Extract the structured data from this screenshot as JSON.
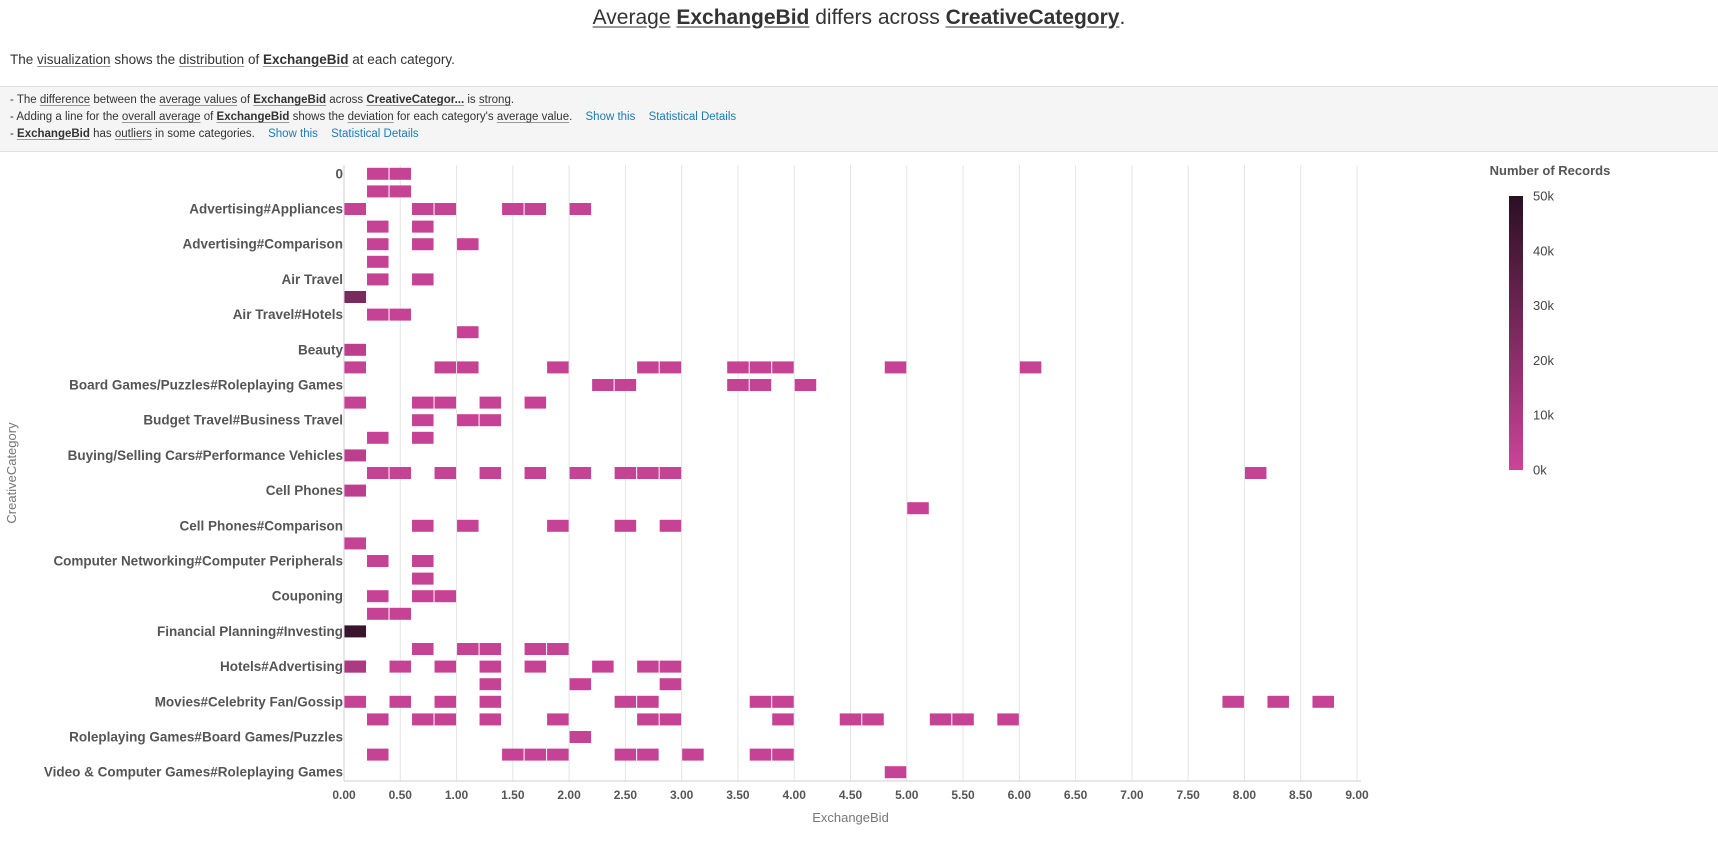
{
  "header": {
    "title_parts": [
      "Average",
      "ExchangeBid",
      "differs across",
      "CreativeCategory",
      "."
    ],
    "subtitle_parts": [
      "The",
      "visualization",
      "shows the",
      "distribution",
      "of",
      "ExchangeBid",
      "at each category."
    ]
  },
  "insights": [
    {
      "parts": [
        "- The",
        "difference",
        "between the",
        "average values",
        "of",
        "ExchangeBid",
        "across",
        "CreativeCategor...",
        "is",
        "strong",
        "."
      ]
    },
    {
      "parts": [
        "- Adding a line for the",
        "overall average",
        "of",
        "ExchangeBid",
        "shows the",
        "deviation",
        "for each category's",
        "average value",
        "."
      ],
      "show_label": "Show this",
      "details_label": "Statistical Details"
    },
    {
      "parts": [
        "-",
        "ExchangeBid",
        "has",
        "outliers",
        "in some categories."
      ],
      "show_label": "Show this",
      "details_label": "Statistical Details"
    }
  ],
  "chart_data": {
    "type": "heatmap",
    "xlabel": "ExchangeBid",
    "ylabel": "CreativeCategory",
    "xlim": [
      0,
      9
    ],
    "bin_width": 0.2,
    "x_ticks": [
      "0.00",
      "0.50",
      "1.00",
      "1.50",
      "2.00",
      "2.50",
      "3.00",
      "3.50",
      "4.00",
      "4.50",
      "5.00",
      "5.50",
      "6.00",
      "6.50",
      "7.00",
      "7.50",
      "8.00",
      "8.50",
      "9.00"
    ],
    "y_labels": [
      "0",
      "",
      "Advertising#Appliances",
      "",
      "Advertising#Comparison",
      "",
      "Air Travel",
      "",
      "Air Travel#Hotels",
      "",
      "Beauty",
      "",
      "Board Games/Puzzles#Roleplaying Games",
      "",
      "Budget Travel#Business Travel",
      "",
      "Buying/Selling Cars#Performance Vehicles",
      "",
      "Cell Phones",
      "",
      "Cell Phones#Comparison",
      "",
      "Computer Networking#Computer Peripherals",
      "",
      "Couponing",
      "",
      "Financial Planning#Investing",
      "",
      "Hotels#Advertising",
      "",
      "Movies#Celebrity Fan/Gossip",
      "",
      "Roleplaying Games#Board Games/Puzzles",
      "",
      "Video & Computer Games#Roleplaying Games"
    ],
    "legend": {
      "title": "Number of Records",
      "ticks": [
        "0k",
        "10k",
        "20k",
        "30k",
        "40k",
        "50k"
      ],
      "min": 0,
      "max": 50000,
      "color_low": "#cc4499",
      "color_high": "#2a0f22"
    },
    "cells": [
      {
        "row": 0,
        "bins": [
          1,
          2
        ],
        "count": 2000
      },
      {
        "row": 1,
        "bins": [
          1,
          2
        ],
        "count": 2000
      },
      {
        "row": 2,
        "bins": [
          0,
          3,
          4,
          7,
          8,
          10
        ],
        "count": 2000
      },
      {
        "row": 3,
        "bins": [
          1,
          3
        ],
        "count": 2000
      },
      {
        "row": 4,
        "bins": [
          1,
          3,
          5
        ],
        "count": 2000
      },
      {
        "row": 5,
        "bins": [
          1
        ],
        "count": 2000
      },
      {
        "row": 6,
        "bins": [
          1,
          3
        ],
        "count": 2000
      },
      {
        "row": 7,
        "bins": [
          0
        ],
        "count": 25000
      },
      {
        "row": 8,
        "bins": [
          1,
          2
        ],
        "count": 2000
      },
      {
        "row": 9,
        "bins": [
          5
        ],
        "count": 2000
      },
      {
        "row": 10,
        "bins": [
          0
        ],
        "count": 5000
      },
      {
        "row": 11,
        "bins": [
          0,
          4,
          5,
          9,
          13,
          14,
          17,
          18,
          19,
          24,
          30
        ],
        "count": 2000
      },
      {
        "row": 12,
        "bins": [
          11,
          12,
          17,
          18,
          20
        ],
        "count": 2000
      },
      {
        "row": 13,
        "bins": [
          0,
          3,
          4,
          6,
          8
        ],
        "count": 2000
      },
      {
        "row": 14,
        "bins": [
          3,
          5,
          6
        ],
        "count": 2000
      },
      {
        "row": 15,
        "bins": [
          1,
          3
        ],
        "count": 2000
      },
      {
        "row": 16,
        "bins": [
          0
        ],
        "count": 5000
      },
      {
        "row": 17,
        "bins": [
          1,
          2,
          4,
          6,
          8,
          10,
          12,
          13,
          14,
          40
        ],
        "count": 2000
      },
      {
        "row": 18,
        "bins": [
          0
        ],
        "count": 5000
      },
      {
        "row": 19,
        "bins": [
          25
        ],
        "count": 2000
      },
      {
        "row": 20,
        "bins": [
          3,
          5,
          9,
          12,
          14
        ],
        "count": 2000
      },
      {
        "row": 21,
        "bins": [
          0
        ],
        "count": 2000
      },
      {
        "row": 22,
        "bins": [
          1,
          3
        ],
        "count": 2000
      },
      {
        "row": 23,
        "bins": [
          3
        ],
        "count": 2000
      },
      {
        "row": 24,
        "bins": [
          1,
          3,
          4
        ],
        "count": 2000
      },
      {
        "row": 25,
        "bins": [
          1,
          2
        ],
        "count": 2000
      },
      {
        "row": 26,
        "bins": [
          0
        ],
        "count": 45000
      },
      {
        "row": 27,
        "bins": [
          3,
          5,
          6,
          8,
          9
        ],
        "count": 2000
      },
      {
        "row": 28,
        "bins": [
          0,
          2,
          4,
          6,
          8,
          11,
          13,
          14
        ],
        "count": 2000
      },
      {
        "row": 28,
        "bins": [
          0
        ],
        "count": 10000
      },
      {
        "row": 29,
        "bins": [
          6,
          10,
          14
        ],
        "count": 2000
      },
      {
        "row": 30,
        "bins": [
          0,
          2,
          4,
          6,
          12,
          13,
          18,
          19,
          39,
          41,
          43
        ],
        "count": 2000
      },
      {
        "row": 31,
        "bins": [
          1,
          3,
          4,
          6,
          9,
          13,
          14,
          19,
          22,
          23,
          26,
          27,
          29
        ],
        "count": 2000
      },
      {
        "row": 32,
        "bins": [
          10
        ],
        "count": 2000
      },
      {
        "row": 33,
        "bins": [
          1,
          7,
          8,
          9,
          12,
          13,
          15,
          18,
          19
        ],
        "count": 2000
      },
      {
        "row": 34,
        "bins": [
          24
        ],
        "count": 2000
      }
    ]
  }
}
